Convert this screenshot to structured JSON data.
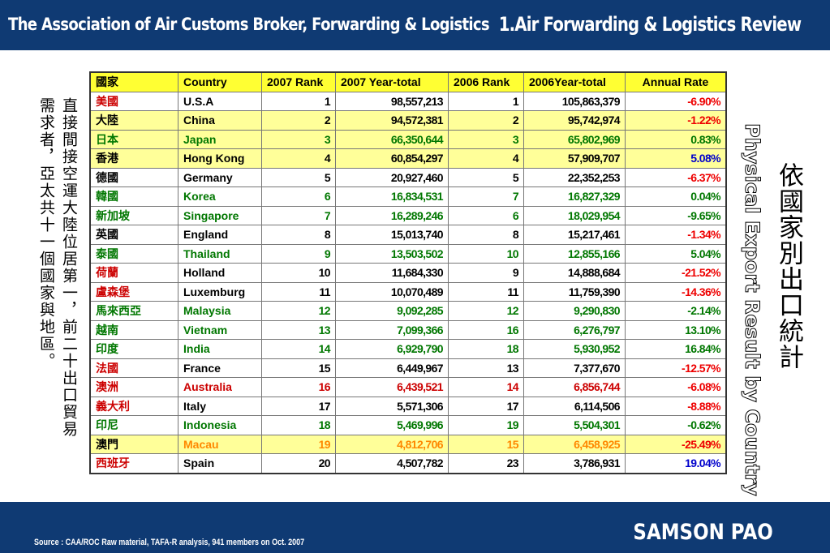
{
  "header": {
    "left_title": "The Association of Air Customs Broker, Forwarding & Logistics",
    "right_title": "1.Air Forwarding & Logistics Review"
  },
  "side_text": {
    "line1": "直接間接空運大陸位居第一，前二十出口貿易",
    "line2": "需求者，亞太共十一個國家與地區。",
    "vertical_title": "依國家別出口統計",
    "vertical_english": "Physical Export Result by Country"
  },
  "table": {
    "headers": [
      "國家",
      "Country",
      "2007 Rank",
      "2007 Year-total",
      "2006 Rank",
      "2006Year-total",
      "Annual   Rate"
    ],
    "rows": [
      {
        "cn": "美國",
        "en": "U.S.A",
        "r07": "1",
        "t07": "98,557,213",
        "r06": "1",
        "t06": "105,863,379",
        "rate": "-6.90%",
        "bg": "white",
        "cnColor": "#cc0000",
        "enColor": "#000000",
        "numColor": "#000000",
        "rateColor": "#ee0000"
      },
      {
        "cn": "大陸",
        "en": "China",
        "r07": "2",
        "t07": "94,572,381",
        "r06": "2",
        "t06": "95,742,974",
        "rate": "-1.22%",
        "bg": "yellow",
        "cnColor": "#000000",
        "enColor": "#000000",
        "numColor": "#000000",
        "rateColor": "#ee0000"
      },
      {
        "cn": "日本",
        "en": "Japan",
        "r07": "3",
        "t07": "66,350,644",
        "r06": "3",
        "t06": "65,802,969",
        "rate": "0.83%",
        "bg": "yellow",
        "cnColor": "#007700",
        "enColor": "#007700",
        "numColor": "#007700",
        "rateColor": "#007700"
      },
      {
        "cn": "香港",
        "en": "Hong Kong",
        "r07": "4",
        "t07": "60,854,297",
        "r06": "4",
        "t06": "57,909,707",
        "rate": "5.08%",
        "bg": "yellow",
        "cnColor": "#000000",
        "enColor": "#000000",
        "numColor": "#000000",
        "rateColor": "#0000cc"
      },
      {
        "cn": "德國",
        "en": "Germany",
        "r07": "5",
        "t07": "20,927,460",
        "r06": "5",
        "t06": "22,352,253",
        "rate": "-6.37%",
        "bg": "white",
        "cnColor": "#000000",
        "enColor": "#000000",
        "numColor": "#000000",
        "rateColor": "#ee0000"
      },
      {
        "cn": "韓國",
        "en": "Korea",
        "r07": "6",
        "t07": "16,834,531",
        "r06": "7",
        "t06": "16,827,329",
        "rate": "0.04%",
        "bg": "white",
        "cnColor": "#007700",
        "enColor": "#007700",
        "numColor": "#007700",
        "rateColor": "#007700"
      },
      {
        "cn": "新加坡",
        "en": "Singapore",
        "r07": "7",
        "t07": "16,289,246",
        "r06": "6",
        "t06": "18,029,954",
        "rate": "-9.65%",
        "bg": "white",
        "cnColor": "#007700",
        "enColor": "#007700",
        "numColor": "#007700",
        "rateColor": "#007700"
      },
      {
        "cn": "英國",
        "en": "England",
        "r07": "8",
        "t07": "15,013,740",
        "r06": "8",
        "t06": "15,217,461",
        "rate": "-1.34%",
        "bg": "white",
        "cnColor": "#000000",
        "enColor": "#000000",
        "numColor": "#000000",
        "rateColor": "#ee0000"
      },
      {
        "cn": "泰國",
        "en": "Thailand",
        "r07": "9",
        "t07": "13,503,502",
        "r06": "10",
        "t06": "12,855,166",
        "rate": "5.04%",
        "bg": "white",
        "cnColor": "#007700",
        "enColor": "#007700",
        "numColor": "#007700",
        "rateColor": "#007700"
      },
      {
        "cn": "荷蘭",
        "en": "Holland",
        "r07": "10",
        "t07": "11,684,330",
        "r06": "9",
        "t06": "14,888,684",
        "rate": "-21.52%",
        "bg": "white",
        "cnColor": "#cc0000",
        "enColor": "#000000",
        "numColor": "#000000",
        "rateColor": "#ee0000"
      },
      {
        "cn": "盧森堡",
        "en": "Luxemburg",
        "r07": "11",
        "t07": "10,070,489",
        "r06": "11",
        "t06": "11,759,390",
        "rate": "-14.36%",
        "bg": "white",
        "cnColor": "#cc0000",
        "enColor": "#000000",
        "numColor": "#000000",
        "rateColor": "#ee0000"
      },
      {
        "cn": "馬來西亞",
        "en": "Malaysia",
        "r07": "12",
        "t07": "9,092,285",
        "r06": "12",
        "t06": "9,290,830",
        "rate": "-2.14%",
        "bg": "white",
        "cnColor": "#007700",
        "enColor": "#007700",
        "numColor": "#007700",
        "rateColor": "#007700"
      },
      {
        "cn": "越南",
        "en": "Vietnam",
        "r07": "13",
        "t07": "7,099,366",
        "r06": "16",
        "t06": "6,276,797",
        "rate": "13.10%",
        "bg": "white",
        "cnColor": "#007700",
        "enColor": "#007700",
        "numColor": "#007700",
        "rateColor": "#007700"
      },
      {
        "cn": "印度",
        "en": "India",
        "r07": "14",
        "t07": "6,929,790",
        "r06": "18",
        "t06": "5,930,952",
        "rate": "16.84%",
        "bg": "white",
        "cnColor": "#007700",
        "enColor": "#007700",
        "numColor": "#007700",
        "rateColor": "#007700"
      },
      {
        "cn": "法國",
        "en": "France",
        "r07": "15",
        "t07": "6,449,967",
        "r06": "13",
        "t06": "7,377,670",
        "rate": "-12.57%",
        "bg": "white",
        "cnColor": "#cc0000",
        "enColor": "#000000",
        "numColor": "#000000",
        "rateColor": "#ee0000"
      },
      {
        "cn": "澳洲",
        "en": "Australia",
        "r07": "16",
        "t07": "6,439,521",
        "r06": "14",
        "t06": "6,856,744",
        "rate": "-6.08%",
        "bg": "white",
        "cnColor": "#cc0000",
        "enColor": "#cc0000",
        "numColor": "#cc0000",
        "rateColor": "#ee0000"
      },
      {
        "cn": "義大利",
        "en": "Italy",
        "r07": "17",
        "t07": "5,571,306",
        "r06": "17",
        "t06": "6,114,506",
        "rate": "-8.88%",
        "bg": "white",
        "cnColor": "#cc0000",
        "enColor": "#000000",
        "numColor": "#000000",
        "rateColor": "#ee0000"
      },
      {
        "cn": "印尼",
        "en": "Indonesia",
        "r07": "18",
        "t07": "5,469,996",
        "r06": "19",
        "t06": "5,504,301",
        "rate": "-0.62%",
        "bg": "white",
        "cnColor": "#007700",
        "enColor": "#007700",
        "numColor": "#007700",
        "rateColor": "#007700"
      },
      {
        "cn": "澳門",
        "en": "Macau",
        "r07": "19",
        "t07": "4,812,706",
        "r06": "15",
        "t06": "6,458,925",
        "rate": "-25.49%",
        "bg": "yellow",
        "cnColor": "#000000",
        "enColor": "#ff8800",
        "numColor": "#ff8800",
        "rateColor": "#ee0000"
      },
      {
        "cn": "西班牙",
        "en": "Spain",
        "r07": "20",
        "t07": "4,507,782",
        "r06": "23",
        "t06": "3,786,931",
        "rate": "19.04%",
        "bg": "white",
        "cnColor": "#cc0000",
        "enColor": "#000000",
        "numColor": "#000000",
        "rateColor": "#0000cc"
      }
    ]
  },
  "footer": {
    "source": "Source : CAA/ROC Raw material, TAFA-R analysis,  941 members on Oct. 2007",
    "author": "SAMSON PAO"
  }
}
